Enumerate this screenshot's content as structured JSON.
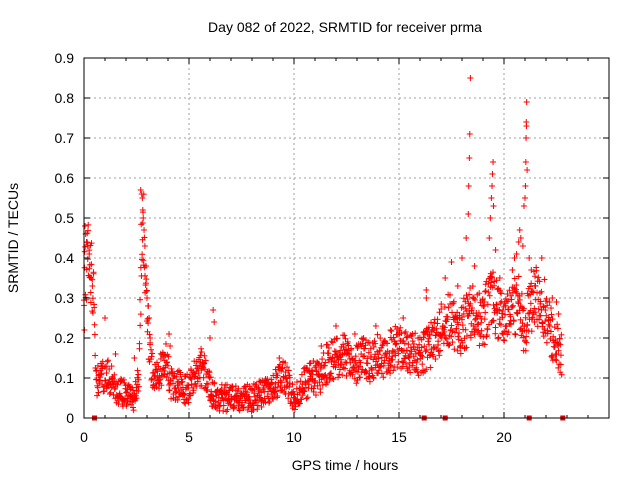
{
  "chart_data": {
    "type": "scatter",
    "title": "Day 082 of 2022, SRMTID for receiver prma",
    "xlabel": "GPS time / hours",
    "ylabel": "SRMTID / TECUs",
    "xlim": [
      0,
      25
    ],
    "ylim": [
      0,
      0.9
    ],
    "xticks": [
      0,
      5,
      10,
      15,
      20
    ],
    "xtick_labels": [
      "0",
      "5",
      "10",
      "15",
      "20"
    ],
    "yticks": [
      0,
      0.1,
      0.2,
      0.3,
      0.4,
      0.5,
      0.6,
      0.7,
      0.8,
      0.9
    ],
    "ytick_labels": [
      "0",
      "0.1",
      "0.2",
      "0.3",
      "0.4",
      "0.5",
      "0.6",
      "0.7",
      "0.8",
      "0.9"
    ],
    "grid": true,
    "marker": "plus",
    "color": "#ff0000",
    "trend": [
      [
        0.0,
        0.36
      ],
      [
        0.3,
        0.4
      ],
      [
        0.45,
        0.3
      ],
      [
        0.6,
        0.09
      ],
      [
        0.9,
        0.11
      ],
      [
        1.2,
        0.1
      ],
      [
        1.6,
        0.07
      ],
      [
        2.0,
        0.06
      ],
      [
        2.4,
        0.05
      ],
      [
        2.6,
        0.09
      ],
      [
        2.75,
        0.45
      ],
      [
        2.85,
        0.48
      ],
      [
        3.0,
        0.27
      ],
      [
        3.2,
        0.12
      ],
      [
        3.6,
        0.11
      ],
      [
        3.9,
        0.16
      ],
      [
        4.1,
        0.09
      ],
      [
        4.5,
        0.08
      ],
      [
        5.0,
        0.07
      ],
      [
        5.4,
        0.12
      ],
      [
        5.7,
        0.13
      ],
      [
        6.0,
        0.07
      ],
      [
        6.5,
        0.05
      ],
      [
        7.0,
        0.05
      ],
      [
        7.5,
        0.05
      ],
      [
        8.0,
        0.05
      ],
      [
        8.5,
        0.06
      ],
      [
        9.0,
        0.07
      ],
      [
        9.3,
        0.1
      ],
      [
        9.6,
        0.1
      ],
      [
        10.0,
        0.05
      ],
      [
        10.4,
        0.08
      ],
      [
        10.8,
        0.1
      ],
      [
        11.2,
        0.1
      ],
      [
        11.6,
        0.14
      ],
      [
        12.0,
        0.15
      ],
      [
        12.4,
        0.16
      ],
      [
        12.8,
        0.12
      ],
      [
        13.2,
        0.16
      ],
      [
        13.6,
        0.14
      ],
      [
        14.0,
        0.16
      ],
      [
        14.4,
        0.15
      ],
      [
        14.8,
        0.18
      ],
      [
        15.2,
        0.18
      ],
      [
        15.6,
        0.16
      ],
      [
        16.0,
        0.16
      ],
      [
        16.5,
        0.18
      ],
      [
        17.0,
        0.22
      ],
      [
        17.5,
        0.25
      ],
      [
        17.9,
        0.22
      ],
      [
        18.3,
        0.25
      ],
      [
        18.7,
        0.27
      ],
      [
        19.0,
        0.23
      ],
      [
        19.3,
        0.3
      ],
      [
        19.6,
        0.28
      ],
      [
        20.0,
        0.24
      ],
      [
        20.4,
        0.26
      ],
      [
        20.7,
        0.3
      ],
      [
        21.0,
        0.22
      ],
      [
        21.4,
        0.3
      ],
      [
        21.8,
        0.3
      ],
      [
        22.2,
        0.22
      ],
      [
        22.6,
        0.17
      ],
      [
        22.75,
        0.16
      ]
    ],
    "spikes": [
      [
        0.05,
        0.48
      ],
      [
        0.08,
        0.46
      ],
      [
        0.12,
        0.44
      ],
      [
        0.18,
        0.43
      ],
      [
        0.25,
        0.41
      ],
      [
        0.35,
        0.35
      ],
      [
        0.4,
        0.33
      ],
      [
        0.02,
        0.22
      ],
      [
        1.0,
        0.25
      ],
      [
        1.5,
        0.16
      ],
      [
        2.4,
        0.15
      ],
      [
        2.7,
        0.57
      ],
      [
        2.75,
        0.56
      ],
      [
        2.78,
        0.55
      ],
      [
        2.8,
        0.52
      ],
      [
        2.82,
        0.5
      ],
      [
        2.86,
        0.47
      ],
      [
        2.9,
        0.43
      ],
      [
        2.95,
        0.38
      ],
      [
        3.0,
        0.3
      ],
      [
        3.05,
        0.28
      ],
      [
        3.1,
        0.25
      ],
      [
        3.15,
        0.2
      ],
      [
        4.05,
        0.21
      ],
      [
        4.1,
        0.18
      ],
      [
        6.15,
        0.27
      ],
      [
        6.2,
        0.24
      ],
      [
        6.0,
        0.2
      ],
      [
        9.3,
        0.15
      ],
      [
        11.3,
        0.18
      ],
      [
        12.0,
        0.23
      ],
      [
        12.9,
        0.21
      ],
      [
        13.9,
        0.23
      ],
      [
        14.6,
        0.22
      ],
      [
        15.2,
        0.25
      ],
      [
        16.3,
        0.3
      ],
      [
        16.3,
        0.32
      ],
      [
        17.2,
        0.35
      ],
      [
        17.5,
        0.39
      ],
      [
        17.8,
        0.33
      ],
      [
        18.0,
        0.4
      ],
      [
        18.2,
        0.45
      ],
      [
        18.3,
        0.51
      ],
      [
        18.32,
        0.58
      ],
      [
        18.35,
        0.65
      ],
      [
        18.37,
        0.71
      ],
      [
        18.4,
        0.85
      ],
      [
        18.6,
        0.38
      ],
      [
        19.3,
        0.45
      ],
      [
        19.35,
        0.5
      ],
      [
        19.4,
        0.55
      ],
      [
        19.43,
        0.58
      ],
      [
        19.45,
        0.61
      ],
      [
        19.48,
        0.64
      ],
      [
        19.5,
        0.53
      ],
      [
        19.6,
        0.42
      ],
      [
        19.8,
        0.35
      ],
      [
        20.4,
        0.37
      ],
      [
        20.5,
        0.4
      ],
      [
        20.6,
        0.41
      ],
      [
        20.7,
        0.44
      ],
      [
        20.75,
        0.47
      ],
      [
        20.8,
        0.45
      ],
      [
        20.9,
        0.43
      ],
      [
        20.95,
        0.53
      ],
      [
        21.0,
        0.55
      ],
      [
        21.02,
        0.58
      ],
      [
        21.04,
        0.64
      ],
      [
        21.05,
        0.7
      ],
      [
        21.06,
        0.74
      ],
      [
        21.07,
        0.73
      ],
      [
        21.08,
        0.79
      ],
      [
        21.1,
        0.62
      ],
      [
        21.2,
        0.4
      ],
      [
        21.3,
        0.37
      ],
      [
        21.5,
        0.33
      ],
      [
        21.8,
        0.4
      ],
      [
        22.3,
        0.3
      ],
      [
        22.5,
        0.29
      ],
      [
        22.6,
        0.26
      ]
    ],
    "gap_markers": [
      0.5,
      16.2,
      17.2,
      21.2,
      22.8
    ]
  }
}
